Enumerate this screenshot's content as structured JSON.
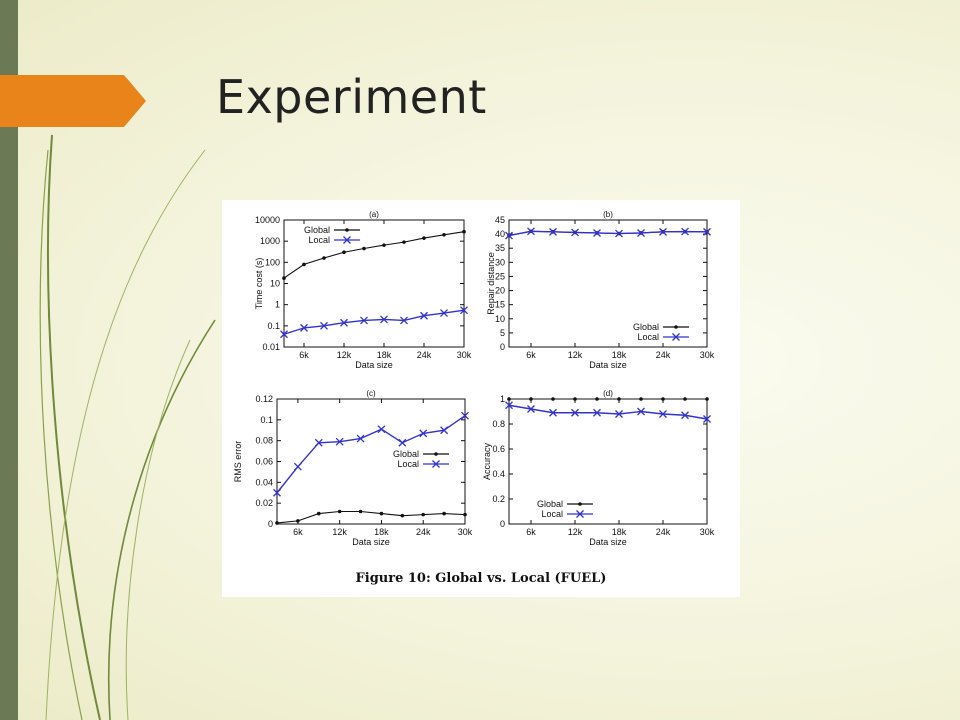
{
  "slide": {
    "title": "Experiment",
    "colors": {
      "accent_bar": "#6b7a55",
      "arrow": "#e8841a",
      "background": "#f4f4dd",
      "decorative_curves": "#6f8a3a"
    }
  },
  "figure": {
    "caption": "Figure 10: Global vs. Local (FUEL)"
  },
  "chart_data": [
    {
      "id": "a",
      "type": "line",
      "title": "(a)",
      "xlabel": "Data size",
      "ylabel": "Time cost (s)",
      "yscale": "log",
      "xlim": [
        3000,
        30000
      ],
      "ylim": [
        0.01,
        10000
      ],
      "xticks": [
        6000,
        12000,
        18000,
        24000,
        30000
      ],
      "xtick_labels": [
        "6k",
        "12k",
        "18k",
        "24k",
        "30k"
      ],
      "yticks": [
        0.01,
        0.1,
        1,
        10,
        100,
        1000,
        10000
      ],
      "ytick_labels": [
        "0.01",
        "0.1",
        "1",
        "10",
        "100",
        "1000",
        "10000"
      ],
      "legend": "top-left",
      "series": [
        {
          "name": "Global",
          "color": "#111111",
          "marker": "dot",
          "x": [
            3000,
            6000,
            9000,
            12000,
            15000,
            18000,
            21000,
            24000,
            27000,
            30000
          ],
          "y": [
            18,
            80,
            160,
            300,
            450,
            650,
            900,
            1400,
            2000,
            2800
          ]
        },
        {
          "name": "Local",
          "color": "#3333cc",
          "marker": "x",
          "x": [
            3000,
            6000,
            9000,
            12000,
            15000,
            18000,
            21000,
            24000,
            27000,
            30000
          ],
          "y": [
            0.04,
            0.08,
            0.1,
            0.14,
            0.18,
            0.2,
            0.18,
            0.3,
            0.4,
            0.55
          ]
        }
      ]
    },
    {
      "id": "b",
      "type": "line",
      "title": "(b)",
      "xlabel": "Data size",
      "ylabel": "Repair distance",
      "xlim": [
        3000,
        30000
      ],
      "ylim": [
        0,
        45
      ],
      "xticks": [
        6000,
        12000,
        18000,
        24000,
        30000
      ],
      "xtick_labels": [
        "6k",
        "12k",
        "18k",
        "24k",
        "30k"
      ],
      "yticks": [
        0,
        5,
        10,
        15,
        20,
        25,
        30,
        35,
        40,
        45
      ],
      "ytick_labels": [
        "0",
        "5",
        "10",
        "15",
        "20",
        "25",
        "30",
        "35",
        "40",
        "45"
      ],
      "legend": "bottom-right",
      "series": [
        {
          "name": "Global",
          "color": "#111111",
          "marker": "dot",
          "x": [
            3000,
            6000,
            9000,
            12000,
            15000,
            18000,
            21000,
            24000,
            27000,
            30000
          ],
          "y": [
            39.5,
            41,
            40.8,
            40.6,
            40.4,
            40.2,
            40.4,
            40.8,
            40.9,
            40.8
          ]
        },
        {
          "name": "Local",
          "color": "#3333cc",
          "marker": "x",
          "x": [
            3000,
            6000,
            9000,
            12000,
            15000,
            18000,
            21000,
            24000,
            27000,
            30000
          ],
          "y": [
            39.5,
            41,
            40.8,
            40.6,
            40.4,
            40.2,
            40.4,
            40.8,
            40.9,
            40.8
          ]
        }
      ]
    },
    {
      "id": "c",
      "type": "line",
      "title": "(c)",
      "xlabel": "Data size",
      "ylabel": "RMS error",
      "xlim": [
        3000,
        30000
      ],
      "ylim": [
        0,
        0.12
      ],
      "xticks": [
        6000,
        12000,
        18000,
        24000,
        30000
      ],
      "xtick_labels": [
        "6k",
        "12k",
        "18k",
        "24k",
        "30k"
      ],
      "yticks": [
        0,
        0.02,
        0.04,
        0.06,
        0.08,
        0.1,
        0.12
      ],
      "ytick_labels": [
        "0",
        "0.02",
        "0.04",
        "0.06",
        "0.08",
        "0.1",
        "0.12"
      ],
      "legend": "center-right",
      "series": [
        {
          "name": "Global",
          "color": "#111111",
          "marker": "dot",
          "x": [
            3000,
            6000,
            9000,
            12000,
            15000,
            18000,
            21000,
            24000,
            27000,
            30000
          ],
          "y": [
            0.001,
            0.003,
            0.01,
            0.012,
            0.012,
            0.01,
            0.008,
            0.009,
            0.01,
            0.009
          ]
        },
        {
          "name": "Local",
          "color": "#3333cc",
          "marker": "x",
          "x": [
            3000,
            6000,
            9000,
            12000,
            15000,
            18000,
            21000,
            24000,
            27000,
            30000
          ],
          "y": [
            0.03,
            0.055,
            0.078,
            0.079,
            0.082,
            0.091,
            0.078,
            0.087,
            0.09,
            0.104
          ]
        }
      ]
    },
    {
      "id": "d",
      "type": "line",
      "title": "(d)",
      "xlabel": "Data size",
      "ylabel": "Accuracy",
      "xlim": [
        3000,
        30000
      ],
      "ylim": [
        0,
        1
      ],
      "xticks": [
        6000,
        12000,
        18000,
        24000,
        30000
      ],
      "xtick_labels": [
        "6k",
        "12k",
        "18k",
        "24k",
        "30k"
      ],
      "yticks": [
        0,
        0.2,
        0.4,
        0.6,
        0.8,
        1
      ],
      "ytick_labels": [
        "0",
        "0.2",
        "0.4",
        "0.6",
        "0.8",
        "1"
      ],
      "legend": "bottom-left",
      "series": [
        {
          "name": "Global",
          "color": "#111111",
          "marker": "dot",
          "x": [
            3000,
            6000,
            9000,
            12000,
            15000,
            18000,
            21000,
            24000,
            27000,
            30000
          ],
          "y": [
            1,
            1,
            1,
            1,
            1,
            1,
            1,
            1,
            1,
            1
          ]
        },
        {
          "name": "Local",
          "color": "#3333cc",
          "marker": "x",
          "x": [
            3000,
            6000,
            9000,
            12000,
            15000,
            18000,
            21000,
            24000,
            27000,
            30000
          ],
          "y": [
            0.95,
            0.92,
            0.89,
            0.89,
            0.89,
            0.88,
            0.9,
            0.88,
            0.87,
            0.84
          ]
        }
      ]
    }
  ]
}
